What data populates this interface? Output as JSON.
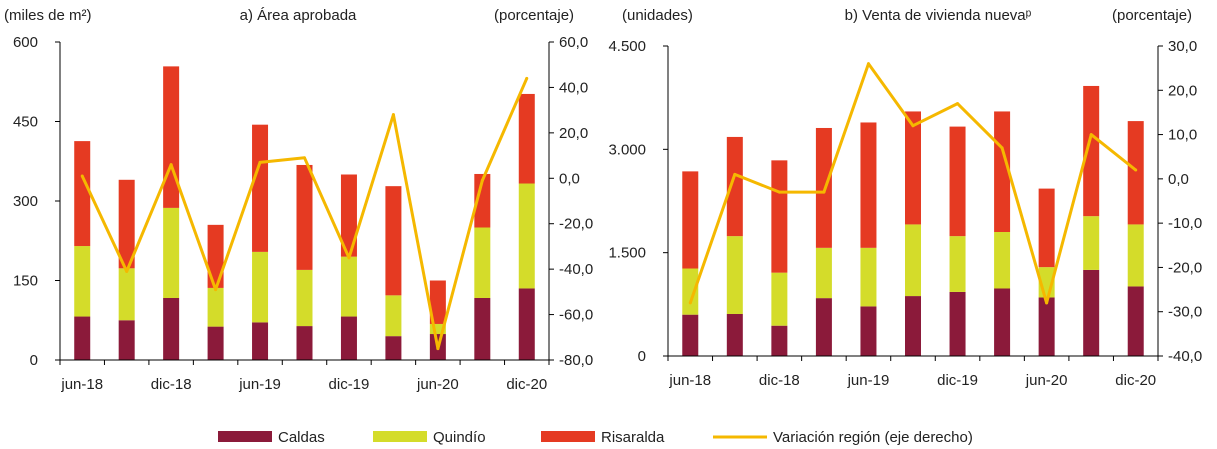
{
  "legend": {
    "caldas": "Caldas",
    "quindio": "Quindío",
    "risaralda": "Risaralda",
    "variacion": "Variación región (eje derecho)"
  },
  "colors": {
    "caldas": "#8B1A3A",
    "quindio": "#D4DC2A",
    "risaralda": "#E53A22",
    "variacion": "#F5B800"
  },
  "chart_data": [
    {
      "type": "bar",
      "stacked": true,
      "title": "a) Área aprobada",
      "left_unit": "(miles de m²)",
      "right_unit": "(porcentaje)",
      "categories": [
        "jun-18",
        "sep-18",
        "dic-18",
        "mar-19",
        "jun-19",
        "sep-19",
        "dic-19",
        "mar-20",
        "jun-20",
        "sep-20",
        "dic-20"
      ],
      "x_tick_labels": [
        "jun-18",
        "dic-18",
        "jun-19",
        "dic-19",
        "jun-20",
        "dic-20"
      ],
      "series": [
        {
          "name": "Caldas",
          "values": [
            82,
            75,
            117,
            63,
            71,
            64,
            82,
            45,
            49,
            117,
            135
          ]
        },
        {
          "name": "Quindío",
          "values": [
            133,
            98,
            170,
            73,
            133,
            106,
            113,
            77,
            19,
            133,
            198
          ]
        },
        {
          "name": "Risaralda",
          "values": [
            198,
            167,
            267,
            119,
            240,
            198,
            155,
            206,
            82,
            101,
            169
          ]
        }
      ],
      "line": {
        "name": "Variación región (eje derecho)",
        "values": [
          1,
          -41,
          6,
          -49,
          7,
          9,
          -35,
          28,
          -75,
          -1,
          44
        ]
      },
      "ylim_left": [
        0,
        600
      ],
      "yticks_left": [
        "0",
        "150",
        "300",
        "450",
        "600"
      ],
      "ylim_right": [
        -80,
        60
      ],
      "yticks_right": [
        "-80,0",
        "-60,0",
        "-40,0",
        "-20,0",
        "0,0",
        "20,0",
        "40,0",
        "60,0"
      ],
      "grid": false
    },
    {
      "type": "bar",
      "stacked": true,
      "title": "b) Venta de vivienda nuevaᵖ",
      "left_unit": "(unidades)",
      "right_unit": "(porcentaje)",
      "categories": [
        "jun-18",
        "sep-18",
        "dic-18",
        "mar-19",
        "jun-19",
        "sep-19",
        "dic-19",
        "mar-20",
        "jun-20",
        "sep-20",
        "dic-20"
      ],
      "x_tick_labels": [
        "jun-18",
        "dic-18",
        "jun-19",
        "dic-19",
        "jun-20",
        "dic-20"
      ],
      "series": [
        {
          "name": "Caldas",
          "values": [
            600,
            610,
            440,
            840,
            720,
            870,
            930,
            980,
            850,
            1250,
            1010
          ]
        },
        {
          "name": "Quindío",
          "values": [
            670,
            1130,
            770,
            730,
            850,
            1040,
            810,
            820,
            440,
            780,
            900
          ]
        },
        {
          "name": "Risaralda",
          "values": [
            1410,
            1440,
            1630,
            1740,
            1820,
            1640,
            1590,
            1750,
            1140,
            1890,
            1500
          ]
        }
      ],
      "line": {
        "name": "Variación región (eje derecho)",
        "values": [
          -28,
          1,
          -3,
          -3,
          26,
          12,
          17,
          7,
          -28,
          10,
          2
        ]
      },
      "ylim_left": [
        0,
        4500
      ],
      "yticks_left": [
        "0",
        "1.500",
        "3.000",
        "4.500"
      ],
      "ylim_right": [
        -40,
        30
      ],
      "yticks_right": [
        "-40,0",
        "-30,0",
        "-20,0",
        "-10,0",
        "0,0",
        "10,0",
        "20,0",
        "30,0"
      ],
      "grid": false
    }
  ]
}
